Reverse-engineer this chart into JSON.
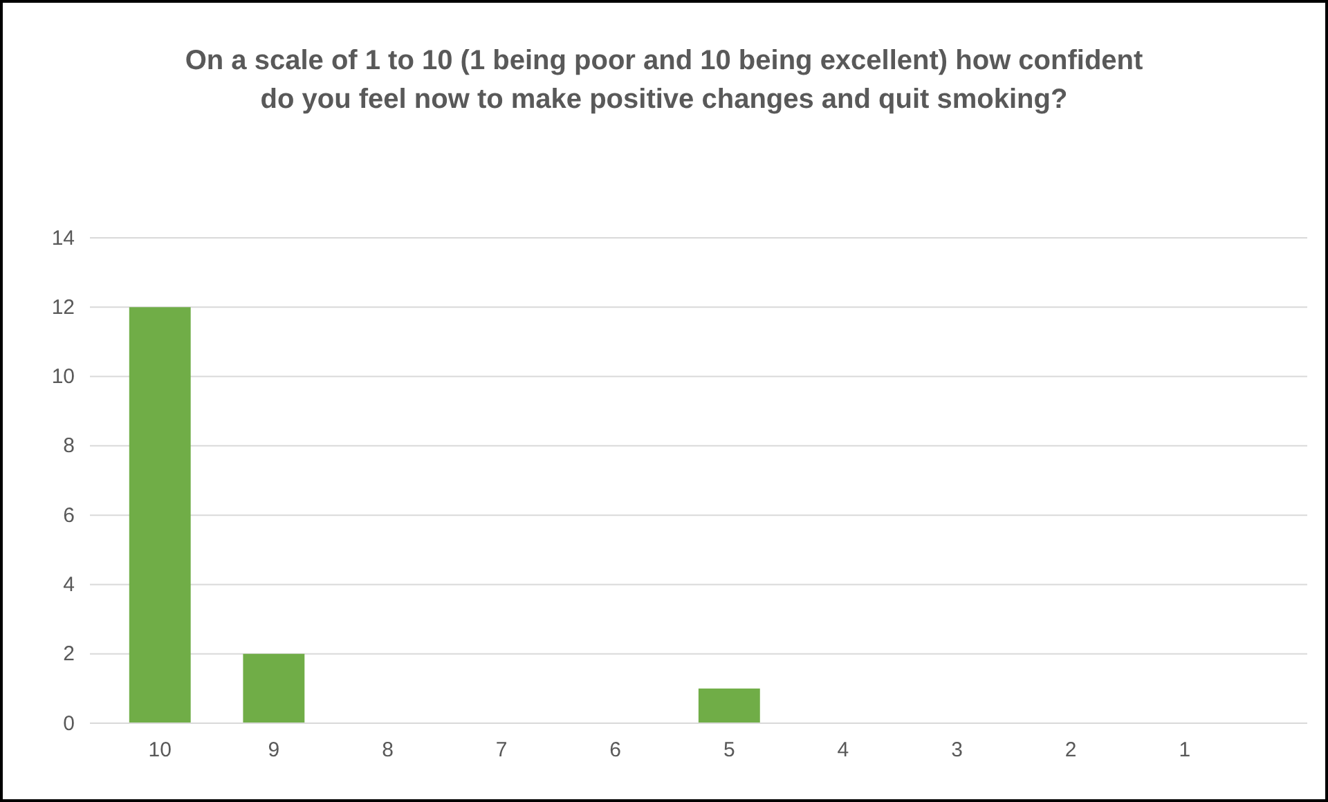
{
  "chart_data": {
    "type": "bar",
    "title": "On a scale of 1 to 10 (1 being poor and 10 being excellent) how confident do you feel now to make positive changes and quit smoking?",
    "categories": [
      "10",
      "9",
      "8",
      "7",
      "6",
      "5",
      "4",
      "3",
      "2",
      "1"
    ],
    "values": [
      12,
      2,
      0,
      0,
      0,
      1,
      0,
      0,
      0,
      0
    ],
    "color": "#70ad47",
    "ylim": [
      0,
      14
    ],
    "yticks": [
      0,
      2,
      4,
      6,
      8,
      10,
      12,
      14
    ],
    "grid": "y"
  }
}
